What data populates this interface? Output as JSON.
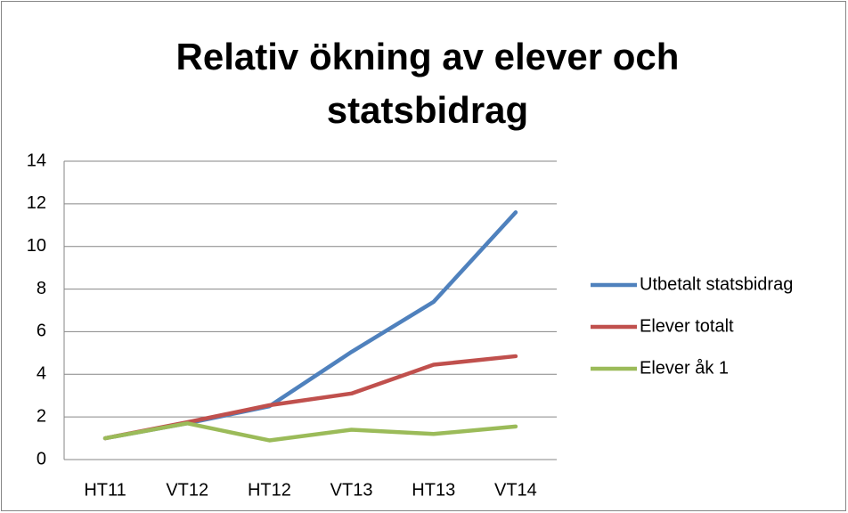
{
  "chart_data": {
    "type": "line",
    "title": "Relativ ökning av elever och statsbidrag",
    "categories": [
      "HT11",
      "VT12",
      "HT12",
      "VT13",
      "HT13",
      "VT14"
    ],
    "series": [
      {
        "name": "Utbetalt statsbidrag",
        "color": "#4f81bd",
        "values": [
          1,
          1.7,
          2.5,
          5.05,
          7.4,
          11.6
        ]
      },
      {
        "name": "Elever totalt",
        "color": "#c0504d",
        "values": [
          1,
          1.75,
          2.55,
          3.1,
          4.45,
          4.85
        ]
      },
      {
        "name": "Elever åk 1",
        "color": "#9bbb59",
        "values": [
          1,
          1.7,
          0.9,
          1.4,
          1.2,
          1.55
        ]
      }
    ],
    "ylim": [
      0,
      14
    ],
    "yticks": [
      0,
      2,
      4,
      6,
      8,
      10,
      12,
      14
    ],
    "grid": true,
    "legend": "right"
  }
}
